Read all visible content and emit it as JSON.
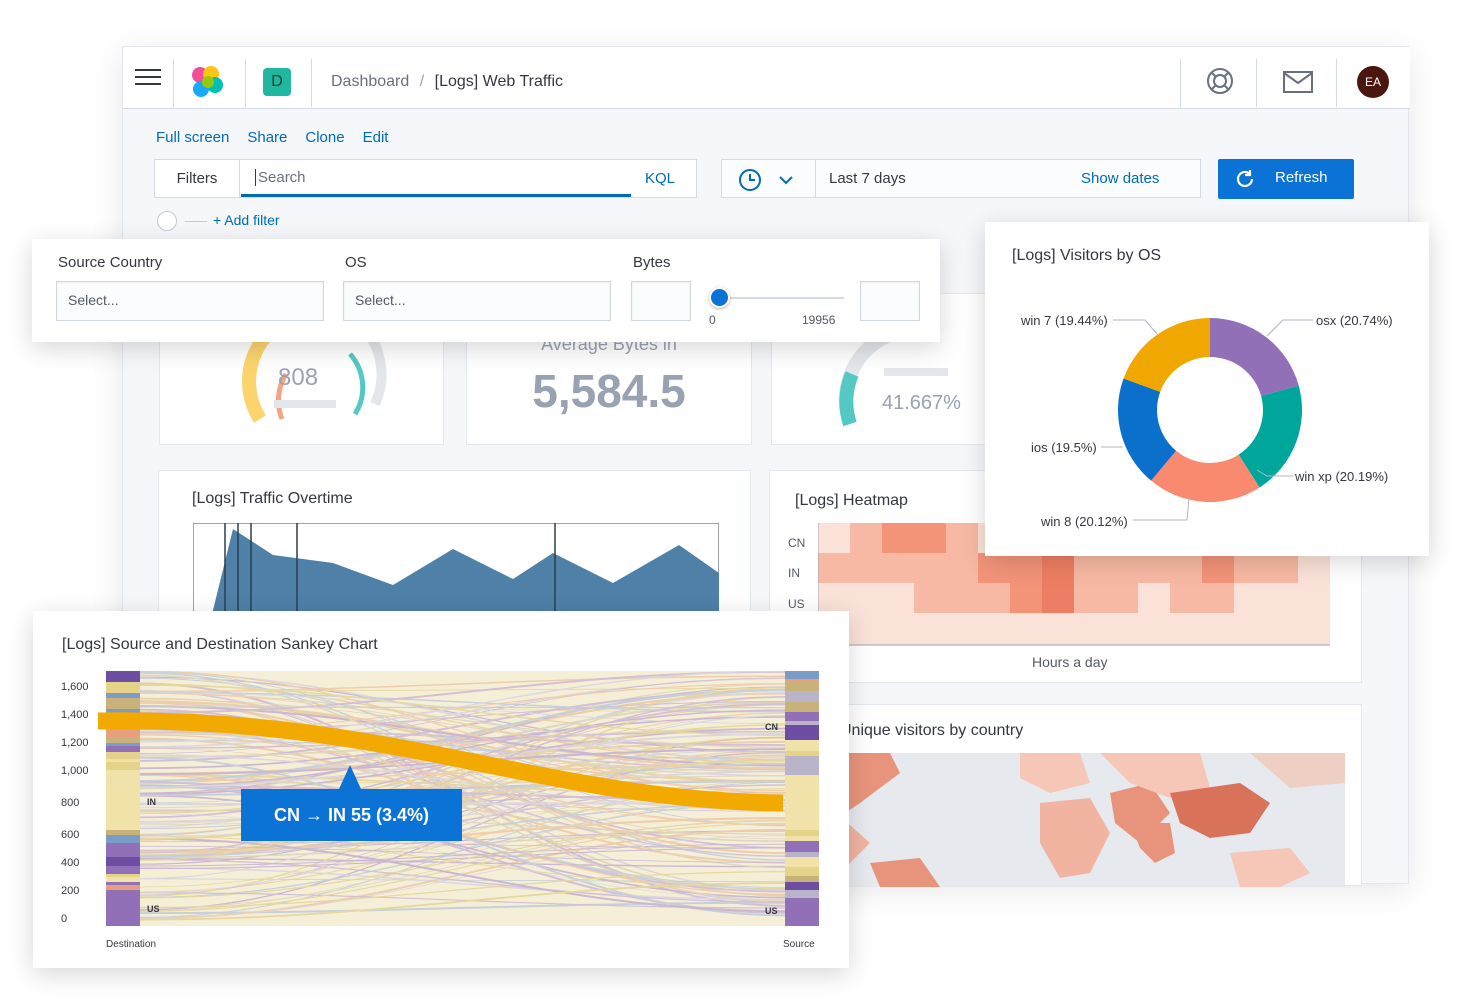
{
  "breadcrumb": {
    "root": "Dashboard",
    "sep": "/",
    "current": "[Logs] Web Traffic"
  },
  "header": {
    "space_badge": "D",
    "avatar": "EA"
  },
  "actions": [
    "Full screen",
    "Share",
    "Clone",
    "Edit"
  ],
  "query": {
    "filters_label": "Filters",
    "placeholder": "Search",
    "language": "KQL",
    "add_filter": "+ Add filter"
  },
  "time": {
    "range": "Last 7 days",
    "show_dates": "Show dates",
    "refresh": "Refresh"
  },
  "controls": {
    "source_country": {
      "label": "Source Country",
      "placeholder": "Select..."
    },
    "os": {
      "label": "OS",
      "placeholder": "Select..."
    },
    "bytes": {
      "label": "Bytes",
      "min": "0",
      "max": "19956"
    }
  },
  "metrics": {
    "gauge1": "808",
    "avg_label": "Average Bytes in",
    "avg_value": "5,584.5",
    "gauge2": "41.667%"
  },
  "traffic": {
    "title": "[Logs] Traffic Overtime"
  },
  "heatmap": {
    "title": "[Logs] Heatmap",
    "rows": [
      "CN",
      "IN",
      "US"
    ],
    "xlabel": "Hours a day"
  },
  "visitors_map": {
    "title": "Unique visitors by country"
  },
  "os_donut": {
    "title": "[Logs] Visitors by OS",
    "chart_data": {
      "type": "pie",
      "donut": true,
      "categories": [
        "osx (20.74%)",
        "win xp (20.19%)",
        "win 8 (20.12%)",
        "ios (19.5%)",
        "win 7 (19.44%)"
      ],
      "values": [
        20.74,
        20.19,
        20.12,
        19.5,
        19.44
      ],
      "colors": [
        "#9170b8",
        "#00a69b",
        "#f98a6f",
        "#0b6fcc",
        "#f0a700"
      ]
    }
  },
  "sankey": {
    "title": "[Logs] Source and Destination Sankey Chart",
    "yticks": [
      "1,600",
      "1,400",
      "1,200",
      "1,000",
      "800",
      "600",
      "400",
      "200",
      "0"
    ],
    "left_nodes": [
      "IN",
      "US"
    ],
    "right_nodes": [
      "CN",
      "US"
    ],
    "tooltip": "CN → IN 55 (3.4%)",
    "xlabel_left": "Destination",
    "xlabel_right": "Source"
  }
}
